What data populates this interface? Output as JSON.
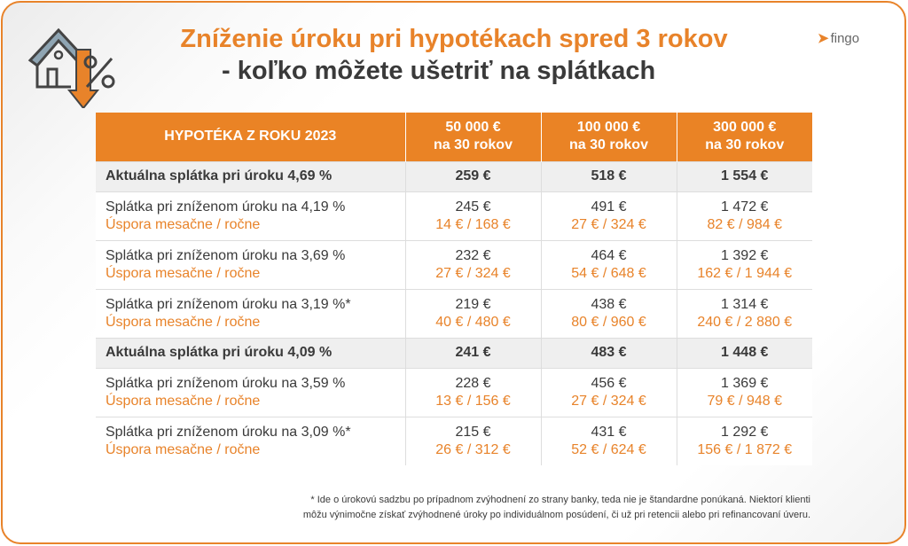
{
  "title_line1": "Zníženie úroku pri hypotékach spred 3 rokov",
  "title_line2": "- koľko môžete ušetriť na splátkach",
  "logo": "fingo",
  "header": {
    "col0": "HYPOTÉKA Z ROKU 2023",
    "cols": [
      {
        "amount": "50 000 €",
        "term": "na 30 rokov"
      },
      {
        "amount": "100 000 €",
        "term": "na 30 rokov"
      },
      {
        "amount": "300 000 €",
        "term": "na 30 rokov"
      }
    ]
  },
  "rows": [
    {
      "type": "bold",
      "label": "Aktuálna splátka pri úroku 4,69 %",
      "values": [
        "259 €",
        "518 €",
        "1 554 €"
      ]
    },
    {
      "type": "normal",
      "label": "Splátka pri zníženom úroku na 4,19 %",
      "sub": "Úspora mesačne / ročne",
      "values": [
        "245 €",
        "491 €",
        "1 472 €"
      ],
      "savings": [
        "14 € / 168 €",
        "27 € / 324 €",
        "82 € / 984 €"
      ]
    },
    {
      "type": "normal",
      "label": "Splátka pri zníženom úroku na 3,69 %",
      "sub": "Úspora mesačne / ročne",
      "values": [
        "232 €",
        "464 €",
        "1 392 €"
      ],
      "savings": [
        "27 € / 324 €",
        "54 € / 648 €",
        "162 € / 1 944 €"
      ]
    },
    {
      "type": "normal",
      "label": "Splátka pri zníženom úroku na 3,19 %*",
      "sub": "Úspora mesačne / ročne",
      "values": [
        "219 €",
        "438 €",
        "1 314 €"
      ],
      "savings": [
        "40 € / 480 €",
        "80 € / 960 €",
        "240 € / 2 880 €"
      ]
    },
    {
      "type": "bold",
      "label": "Aktuálna splátka pri úroku 4,09 %",
      "values": [
        "241 €",
        "483 €",
        "1 448 €"
      ]
    },
    {
      "type": "normal",
      "label": "Splátka pri zníženom úroku na 3,59 %",
      "sub": "Úspora mesačne / ročne",
      "values": [
        "228 €",
        "456 €",
        "1 369 €"
      ],
      "savings": [
        "13 € / 156 €",
        "27 € / 324 €",
        "79 € / 948 €"
      ]
    },
    {
      "type": "normal",
      "label": "Splátka pri zníženom úroku na 3,09 %*",
      "sub": "Úspora mesačne / ročne",
      "values": [
        "215 €",
        "431 €",
        "1 292 €"
      ],
      "savings": [
        "26 € / 312 €",
        "52 € / 624 €",
        "156 € / 1 872 €"
      ]
    }
  ],
  "footnote_line1": "* Ide o úrokovú sadzbu po prípadnom zvýhodnení zo strany banky, teda nie je štandardne ponúkaná. Niektorí klienti",
  "footnote_line2": "môžu výnimočne získať zvýhodnené úroky po individuálnom posúdení, či už pri retencii alebo pri refinancovaní úveru."
}
